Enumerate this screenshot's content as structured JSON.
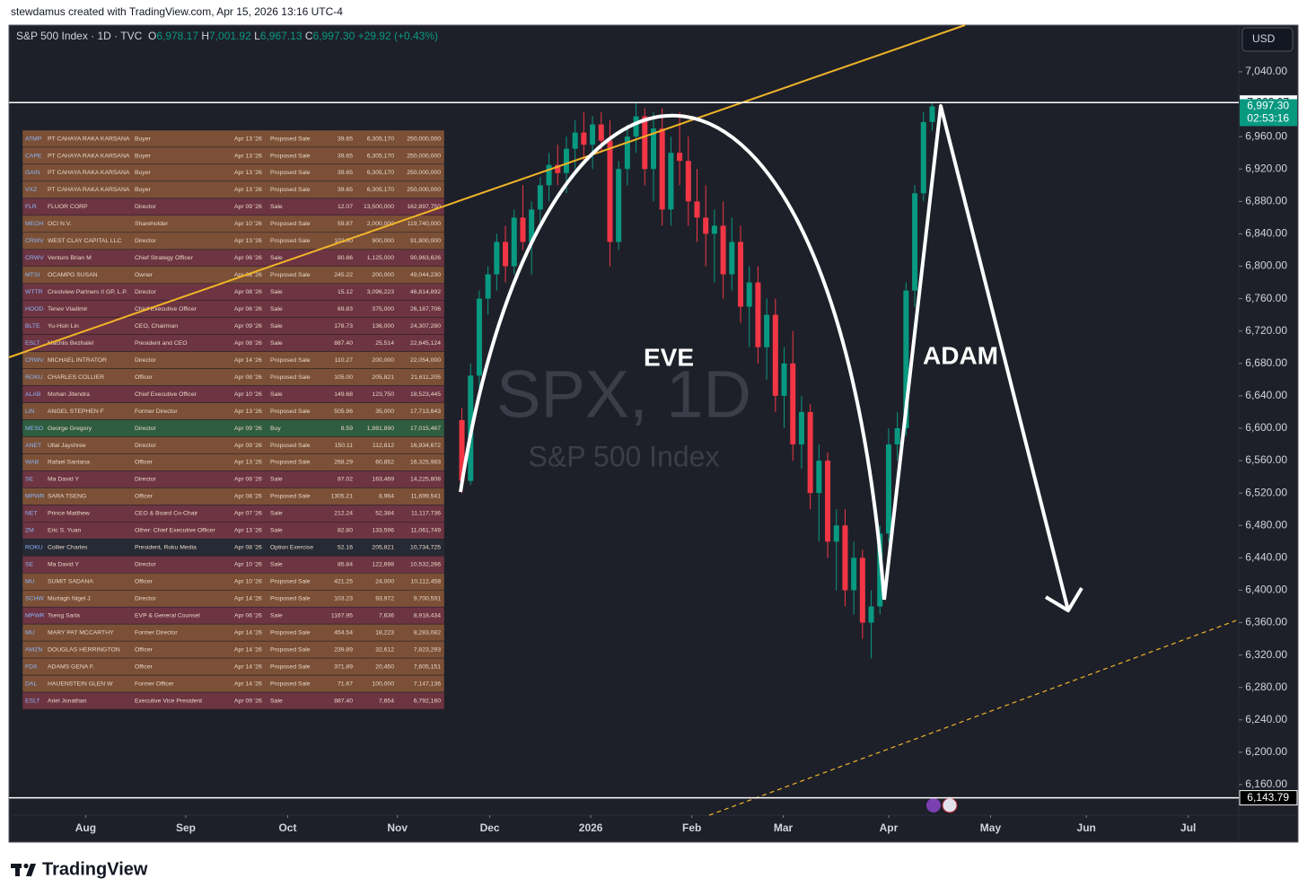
{
  "header": "stewdamus created with TradingView.com, Apr 15, 2026 13:16 UTC-4",
  "legend": {
    "symbol": "S&P 500 Index · 1D · TVC",
    "open_label": "O",
    "open": "6,978.17",
    "high_label": "H",
    "high": "7,001.92",
    "low_label": "L",
    "low": "6,967.13",
    "close_label": "C",
    "close": "6,997.30",
    "change": "+29.92 (+0.43%)"
  },
  "currency": "USD",
  "watermark": {
    "symbol": "SPX, 1D",
    "description": "S&P 500 Index"
  },
  "annotations": [
    "EVE",
    "ADAM"
  ],
  "footer": "TradingView",
  "chart_data": {
    "type": "candlestick",
    "up_color": "#089981",
    "down_color": "#f23645",
    "categories": [
      null,
      null,
      null,
      null,
      null,
      null,
      null,
      null,
      null,
      null,
      null,
      null,
      null,
      null,
      null,
      null,
      null,
      null,
      null,
      null,
      null,
      null,
      null,
      null,
      null,
      null,
      null,
      null,
      null,
      null,
      null,
      null,
      null,
      null,
      null,
      null,
      null,
      null,
      null,
      null,
      null,
      null,
      null,
      null,
      null,
      null,
      null,
      null,
      null,
      null,
      null,
      null,
      null,
      null,
      null
    ],
    "open": [
      6610,
      6535,
      6665,
      6760,
      6790,
      6830,
      6800,
      6860,
      6830,
      6870,
      6900,
      6925,
      6915,
      6945,
      6965,
      6950,
      6975,
      6955,
      6830,
      6920,
      6960,
      6985,
      6920,
      6970,
      6870,
      6940,
      6930,
      6880,
      6860,
      6840,
      6850,
      6790,
      6830,
      6750,
      6780,
      6700,
      6740,
      6640,
      6680,
      6580,
      6620,
      6520,
      6560,
      6460,
      6480,
      6400,
      6440,
      6360,
      6380,
      6470,
      6580,
      6600,
      6770,
      6890,
      6978.17
    ],
    "high": [
      6625,
      6680,
      6770,
      6800,
      6840,
      6850,
      6870,
      6900,
      6880,
      6910,
      6940,
      6950,
      6960,
      6980,
      6990,
      6985,
      6990,
      6980,
      6930,
      6975,
      7002,
      6995,
      6990,
      6995,
      6960,
      6990,
      6960,
      6920,
      6900,
      6870,
      6880,
      6860,
      6850,
      6800,
      6800,
      6760,
      6760,
      6700,
      6720,
      6640,
      6630,
      6580,
      6570,
      6500,
      6500,
      6460,
      6450,
      6400,
      6480,
      6600,
      6620,
      6780,
      6900,
      6990,
      7001.92
    ],
    "low": [
      6520,
      6530,
      6650,
      6740,
      6770,
      6780,
      6790,
      6820,
      6790,
      6850,
      6880,
      6900,
      6890,
      6920,
      6930,
      6920,
      6940,
      6800,
      6820,
      6900,
      6940,
      6900,
      6880,
      6850,
      6850,
      6900,
      6850,
      6830,
      6800,
      6780,
      6760,
      6770,
      6730,
      6700,
      6680,
      6660,
      6620,
      6600,
      6560,
      6550,
      6500,
      6460,
      6440,
      6400,
      6380,
      6370,
      6340,
      6316,
      6370,
      6460,
      6560,
      6590,
      6750,
      6880,
      6967.13
    ],
    "close": [
      6535,
      6665,
      6760,
      6790,
      6830,
      6800,
      6860,
      6830,
      6870,
      6900,
      6925,
      6915,
      6945,
      6965,
      6950,
      6975,
      6955,
      6830,
      6920,
      6960,
      6985,
      6920,
      6970,
      6870,
      6940,
      6930,
      6880,
      6860,
      6840,
      6850,
      6790,
      6830,
      6750,
      6780,
      6700,
      6740,
      6640,
      6680,
      6580,
      6620,
      6520,
      6560,
      6460,
      6480,
      6400,
      6440,
      6360,
      6380,
      6470,
      6580,
      6600,
      6770,
      6890,
      6978,
      6997.3
    ],
    "xlim": [
      -52,
      89.2
    ],
    "xticks": [
      {
        "value": -43.2,
        "label": "Aug"
      },
      {
        "value": -31.7,
        "label": "Sep"
      },
      {
        "value": -20.0,
        "label": "Oct"
      },
      {
        "value": -7.4,
        "label": "Nov"
      },
      {
        "value": 3.2,
        "label": "Dec"
      },
      {
        "value": 14.8,
        "label": "2026"
      },
      {
        "value": 26.4,
        "label": "Feb"
      },
      {
        "value": 36.9,
        "label": "Mar"
      },
      {
        "value": 49.0,
        "label": "Apr"
      },
      {
        "value": 60.7,
        "label": "May"
      },
      {
        "value": 71.7,
        "label": "Jun"
      },
      {
        "value": 83.4,
        "label": "Jul"
      }
    ],
    "ylim": [
      6122.3,
      7097.6
    ],
    "yticks": [
      {
        "value": 6160,
        "label": "6,160.00"
      },
      {
        "value": 6200,
        "label": "6,200.00"
      },
      {
        "value": 6240,
        "label": "6,240.00"
      },
      {
        "value": 6280,
        "label": "6,280.00"
      },
      {
        "value": 6320,
        "label": "6,320.00"
      },
      {
        "value": 6360,
        "label": "6,360.00"
      },
      {
        "value": 6400,
        "label": "6,400.00"
      },
      {
        "value": 6440,
        "label": "6,440.00"
      },
      {
        "value": 6480,
        "label": "6,480.00"
      },
      {
        "value": 6520,
        "label": "6,520.00"
      },
      {
        "value": 6560,
        "label": "6,560.00"
      },
      {
        "value": 6600,
        "label": "6,600.00"
      },
      {
        "value": 6640,
        "label": "6,640.00"
      },
      {
        "value": 6680,
        "label": "6,680.00"
      },
      {
        "value": 6720,
        "label": "6,720.00"
      },
      {
        "value": 6760,
        "label": "6,760.00"
      },
      {
        "value": 6800,
        "label": "6,800.00"
      },
      {
        "value": 6840,
        "label": "6,840.00"
      },
      {
        "value": 6880,
        "label": "6,880.00"
      },
      {
        "value": 6920,
        "label": "6,920.00"
      },
      {
        "value": 6960,
        "label": "6,960.00"
      },
      {
        "value": 7040,
        "label": "7,040.00"
      }
    ],
    "price_lines": [
      {
        "value": 7002.07,
        "label": "7,002.07"
      },
      {
        "value": 6143.79,
        "label": "6,143.79"
      }
    ],
    "last_price": {
      "value": 6997.3,
      "label": "6,997.30"
    },
    "countdown": "02:53:16"
  },
  "table": {
    "rows": [
      [
        "ATMP",
        "PT CAHAYA RAKA KARSANA",
        "Buyer",
        "Apr 13 '26",
        "Proposed Sale",
        "39.65",
        "6,305,170",
        "250,000,000"
      ],
      [
        "CAPE",
        "PT CAHAYA RAKA KARSANA",
        "Buyer",
        "Apr 13 '26",
        "Proposed Sale",
        "39.65",
        "6,305,170",
        "250,000,000"
      ],
      [
        "GAIN",
        "PT CAHAYA RAKA KARSANA",
        "Buyer",
        "Apr 13 '26",
        "Proposed Sale",
        "39.65",
        "6,305,170",
        "250,000,000"
      ],
      [
        "VXZ",
        "PT CAHAYA RAKA KARSANA",
        "Buyer",
        "Apr 13 '26",
        "Proposed Sale",
        "39.65",
        "6,305,170",
        "250,000,000"
      ],
      [
        "FLR",
        "FLUOR CORP",
        "Director",
        "Apr 09 '26",
        "Sale",
        "12.07",
        "13,500,000",
        "162,897,750"
      ],
      [
        "MEOH",
        "OCI N.V.",
        "Shareholder",
        "Apr 10 '26",
        "Proposed Sale",
        "59.87",
        "2,000,000",
        "119,740,000"
      ],
      [
        "CRWV",
        "WEST CLAY CAPITAL LLC",
        "Director",
        "Apr 13 '26",
        "Proposed Sale",
        "102.00",
        "900,000",
        "91,800,000"
      ],
      [
        "CRWV",
        "Venturo Brian M",
        "Chief Strategy Officer",
        "Apr 06 '26",
        "Sale",
        "80.86",
        "1,125,000",
        "90,963,626"
      ],
      [
        "MTSI",
        "OCAMPO SUSAN",
        "Owner",
        "Apr 08 '26",
        "Proposed Sale",
        "245.22",
        "200,000",
        "49,044,230"
      ],
      [
        "WTTR",
        "Crestview Partners II GP, L.P.",
        "Director",
        "Apr 08 '26",
        "Sale",
        "15.12",
        "3,096,223",
        "46,814,892"
      ],
      [
        "HOOD",
        "Tenev Vladimir",
        "Chief Executive Officer",
        "Apr 06 '26",
        "Sale",
        "69.83",
        "375,000",
        "26,187,706"
      ],
      [
        "BLTE",
        "Yu-Hsin Lin",
        "CEO, Chairman",
        "Apr 09 '26",
        "Sale",
        "178.73",
        "136,000",
        "24,307,280"
      ],
      [
        "ESLT",
        "Machlis Bezhalel",
        "President and CEO",
        "Apr 08 '26",
        "Sale",
        "887.40",
        "25,514",
        "22,645,124"
      ],
      [
        "CRWV",
        "MICHAEL INTRATOR",
        "Director",
        "Apr 14 '26",
        "Proposed Sale",
        "110.27",
        "200,000",
        "22,054,000"
      ],
      [
        "ROKU",
        "CHARLES COLLIER",
        "Officer",
        "Apr 08 '26",
        "Proposed Sale",
        "105.00",
        "205,821",
        "21,611,205"
      ],
      [
        "ALAB",
        "Mohan Jitendra",
        "Chief Executive Officer",
        "Apr 10 '26",
        "Sale",
        "149.68",
        "123,750",
        "18,523,445"
      ],
      [
        "LIN",
        "ANGEL STEPHEN F",
        "Former Director",
        "Apr 13 '26",
        "Proposed Sale",
        "505.96",
        "35,000",
        "17,713,643"
      ],
      [
        "MESO",
        "George Gregory",
        "Director",
        "Apr 09 '26",
        "Buy",
        "8.59",
        "1,981,890",
        "17,015,467"
      ],
      [
        "ANET",
        "Ullal Jayshree",
        "Director",
        "Apr 09 '26",
        "Proposed Sale",
        "150.11",
        "112,812",
        "16,934,672"
      ],
      [
        "WAB",
        "Rafael Santana",
        "Officer",
        "Apr 13 '26",
        "Proposed Sale",
        "268.29",
        "60,852",
        "16,325,983"
      ],
      [
        "SE",
        "Ma David Y",
        "Director",
        "Apr 08 '26",
        "Sale",
        "87.02",
        "163,469",
        "14,225,808"
      ],
      [
        "MPWR",
        "SARA TSENG",
        "Officer",
        "Apr 08 '26",
        "Proposed Sale",
        "1305.21",
        "8,964",
        "11,699,541"
      ],
      [
        "NET",
        "Prince Matthew",
        "CEO & Board Co-Chair",
        "Apr 07 '26",
        "Sale",
        "212.24",
        "52,384",
        "11,117,736"
      ],
      [
        "ZM",
        "Eric S. Yuan",
        "Other: Chief Executive Officer",
        "Apr 13 '26",
        "Sale",
        "82.80",
        "133,596",
        "11,061,749"
      ],
      [
        "ROKU",
        "Collier Charles",
        "President, Roku Media",
        "Apr 08 '26",
        "Option Exercise",
        "52.16",
        "205,821",
        "10,734,725"
      ],
      [
        "SE",
        "Ma David Y",
        "Director",
        "Apr 10 '26",
        "Sale",
        "85.84",
        "122,698",
        "10,532,266"
      ],
      [
        "MU",
        "SUMIT SADANA",
        "Officer",
        "Apr 10 '26",
        "Proposed Sale",
        "421.25",
        "24,000",
        "10,112,458"
      ],
      [
        "SCHW",
        "Murtagh Nigel J",
        "Director",
        "Apr 14 '26",
        "Proposed Sale",
        "103.23",
        "93,972",
        "9,700,591"
      ],
      [
        "MPWR",
        "Tseng Sarla",
        "EVP & General Counsel",
        "Apr 06 '26",
        "Sale",
        "1167.95",
        "7,636",
        "8,918,434"
      ],
      [
        "MU",
        "MARY PAT MCCARTHY",
        "Former Director",
        "Apr 14 '26",
        "Proposed Sale",
        "454.54",
        "18,223",
        "8,283,082"
      ],
      [
        "AMZN",
        "DOUGLAS HERRINGTON",
        "Officer",
        "Apr 14 '26",
        "Proposed Sale",
        "239.89",
        "32,612",
        "7,823,293"
      ],
      [
        "FDX",
        "ADAMS GENA F.",
        "Officer",
        "Apr 14 '26",
        "Proposed Sale",
        "371.89",
        "20,450",
        "7,605,151"
      ],
      [
        "DAL",
        "HAUENSTEIN GLEN W",
        "Former Officer",
        "Apr 14 '26",
        "Proposed Sale",
        "71.67",
        "100,000",
        "7,147,136"
      ],
      [
        "ESLT",
        "Ariel Jonathan",
        "Executive Vice President",
        "Apr 09 '26",
        "Sale",
        "887.40",
        "7,654",
        "6,792,160"
      ]
    ]
  }
}
